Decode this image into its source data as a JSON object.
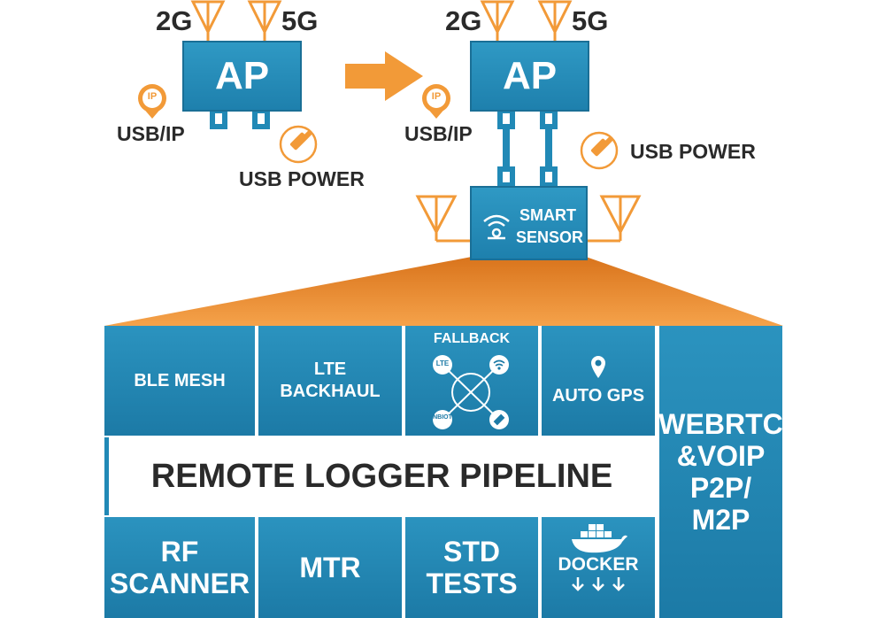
{
  "left_ap": {
    "label": "AP",
    "band_2g": "2G",
    "band_5g": "5G",
    "usb_ip": "USB/IP",
    "usb_power": "USB POWER",
    "ip_badge": "IP"
  },
  "right_ap": {
    "label": "AP",
    "band_2g": "2G",
    "band_5g": "5G",
    "usb_ip": "USB/IP",
    "usb_power": "USB POWER",
    "ip_badge": "IP"
  },
  "sensor": {
    "line1": "SMART",
    "line2": "SENSOR"
  },
  "tiles": {
    "ble_mesh": "BLE MESH",
    "lte_backhaul": {
      "line1": "LTE",
      "line2": "BACKHAUL"
    },
    "fallback": {
      "title": "FALLBACK",
      "lte": "LTE",
      "nbiot": "NBIOT"
    },
    "auto_gps": "AUTO GPS",
    "rf_scanner": {
      "line1": "RF",
      "line2": "SCANNER"
    },
    "mtr": "MTR",
    "std_tests": {
      "line1": "STD",
      "line2": "TESTS"
    },
    "docker": "DOCKER",
    "webrtc": {
      "line1": "WEBRTC",
      "line2": "&VOIP",
      "line3": "P2P/",
      "line4": "M2P"
    }
  },
  "pipeline": "REMOTE LOGGER PIPELINE",
  "colors": {
    "blue": "#2189b6",
    "orange": "#f29a38",
    "dark": "#2a2a2a"
  }
}
